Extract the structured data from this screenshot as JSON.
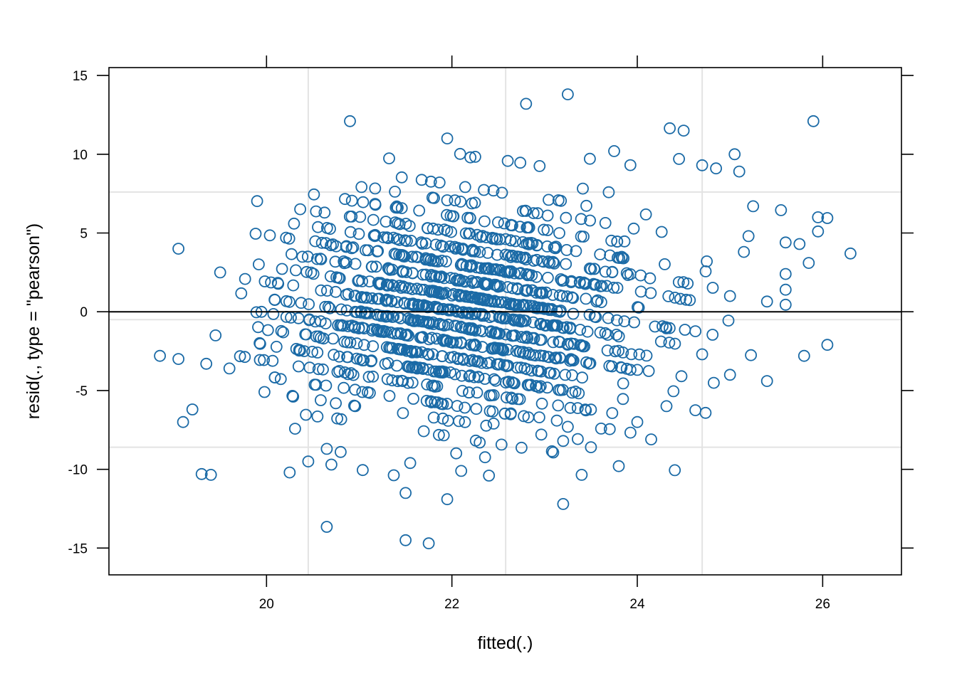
{
  "chart_data": {
    "type": "scatter",
    "title": "",
    "xlabel": "fitted(.)",
    "ylabel": "resid(., type = \"pearson\")",
    "xlim": [
      18.3,
      26.85
    ],
    "ylim": [
      -16.7,
      15.5
    ],
    "x_ticks": [
      20,
      22,
      24,
      26
    ],
    "x_tick_labels": [
      "20",
      "22",
      "24",
      "26"
    ],
    "y_ticks": [
      -15,
      -10,
      -5,
      0,
      5,
      10,
      15
    ],
    "y_tick_labels": [
      "-15",
      "-10",
      "-5",
      "0",
      "5",
      "10",
      "15"
    ],
    "grid_x": [
      20.45,
      22.58,
      24.7
    ],
    "grid_y": [
      -8.6,
      -0.5,
      7.6
    ],
    "reference_line_y": 0,
    "grid": true,
    "legend": "none",
    "colors": {
      "points": "#1a6aa6",
      "grid": "#e3e3e3",
      "reference_line": "#000000",
      "frame": "#000000"
    },
    "outlier_points": [
      [
        18.85,
        -2.8
      ],
      [
        19.05,
        -3.0
      ],
      [
        19.05,
        4.0
      ],
      [
        19.1,
        -7.0
      ],
      [
        19.3,
        -10.3
      ],
      [
        19.4,
        -10.35
      ],
      [
        19.2,
        -6.2
      ],
      [
        19.5,
        2.5
      ],
      [
        19.45,
        -1.5
      ],
      [
        19.6,
        -3.6
      ],
      [
        19.35,
        -3.3
      ],
      [
        20.9,
        12.1
      ],
      [
        22.8,
        13.2
      ],
      [
        23.25,
        13.8
      ],
      [
        25.9,
        12.1
      ],
      [
        24.35,
        11.65
      ],
      [
        24.5,
        11.5
      ],
      [
        21.95,
        11.0
      ],
      [
        22.2,
        9.8
      ],
      [
        23.75,
        10.2
      ],
      [
        25.05,
        10.0
      ],
      [
        24.45,
        9.7
      ],
      [
        20.65,
        -13.65
      ],
      [
        21.5,
        -14.5
      ],
      [
        21.75,
        -14.7
      ],
      [
        21.95,
        -11.9
      ],
      [
        21.5,
        -11.5
      ],
      [
        23.2,
        -12.2
      ],
      [
        22.4,
        -10.4
      ],
      [
        23.4,
        -10.35
      ],
      [
        20.25,
        -10.2
      ],
      [
        26.3,
        3.7
      ],
      [
        26.05,
        5.95
      ],
      [
        25.95,
        6.0
      ],
      [
        25.95,
        5.1
      ],
      [
        26.05,
        -2.1
      ],
      [
        25.85,
        3.1
      ],
      [
        25.75,
        4.3
      ],
      [
        25.55,
        6.45
      ],
      [
        25.6,
        4.4
      ],
      [
        25.6,
        2.4
      ],
      [
        25.6,
        1.4
      ],
      [
        25.6,
        0.45
      ],
      [
        25.4,
        0.65
      ],
      [
        25.4,
        -4.4
      ],
      [
        25.8,
        -2.8
      ],
      [
        25.25,
        6.7
      ],
      [
        25.2,
        4.8
      ],
      [
        25.15,
        3.8
      ],
      [
        25.1,
        8.9
      ],
      [
        25.0,
        -4.0
      ],
      [
        25.0,
        1.0
      ],
      [
        24.85,
        9.1
      ],
      [
        24.7,
        9.3
      ],
      [
        24.7,
        -2.7
      ],
      [
        24.75,
        3.2
      ],
      [
        24.0,
        -7.0
      ],
      [
        24.15,
        -8.1
      ],
      [
        23.8,
        -9.8
      ],
      [
        23.5,
        -8.6
      ],
      [
        23.2,
        -8.2
      ],
      [
        23.25,
        -7.3
      ],
      [
        22.3,
        -8.3
      ],
      [
        22.45,
        -7.1
      ],
      [
        20.65,
        -8.7
      ],
      [
        20.8,
        -8.9
      ],
      [
        20.45,
        -9.5
      ],
      [
        20.7,
        -9.7
      ],
      [
        21.55,
        -9.6
      ],
      [
        22.1,
        -10.1
      ]
    ],
    "dense_cloud": {
      "note": "Main cloud of about 1200 residual points between fitted 19.7 and 25.3 and residuals -10 to 10, arranged in diagonal stripes",
      "seed": 20240521,
      "count": 1200,
      "center_x": 22.1,
      "sd_x": 1.05,
      "sd_y": 3.6,
      "stripe_slope": 0.9,
      "stripe_spacing": 1.0
    }
  }
}
